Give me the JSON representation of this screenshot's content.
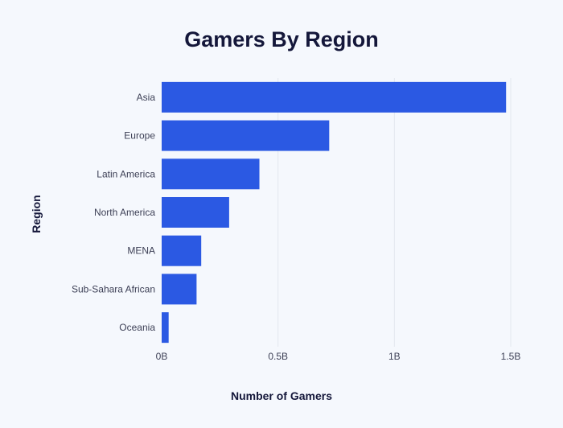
{
  "chart_data": {
    "type": "bar",
    "orientation": "horizontal",
    "title": "Gamers By Region",
    "xlabel": "Number of Gamers",
    "ylabel": "Region",
    "categories": [
      "Asia",
      "Europe",
      "Latin America",
      "North America",
      "MENA",
      "Sub-Sahara African",
      "Oceania"
    ],
    "values": [
      1.48,
      0.72,
      0.42,
      0.29,
      0.17,
      0.15,
      0.03
    ],
    "value_unit": "billions",
    "xlim": [
      0,
      1.5
    ],
    "x_ticks": [
      {
        "value": 0,
        "label": "0B"
      },
      {
        "value": 0.5,
        "label": "0.5B"
      },
      {
        "value": 1,
        "label": "1B"
      },
      {
        "value": 1.5,
        "label": "1.5B"
      }
    ],
    "grid": "vertical",
    "legend": "none",
    "colors": {
      "bar": "#2b59e3",
      "background": "#f5f8fd",
      "grid": "#e3e7ef",
      "text": "#14173a"
    }
  }
}
